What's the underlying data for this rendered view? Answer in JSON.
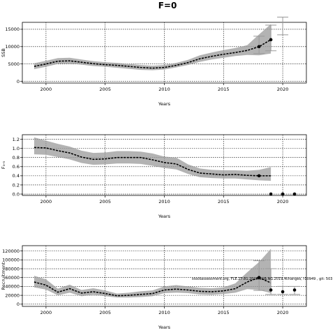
{
  "figure": {
    "title": "F=0",
    "note": "stockassessment.org, FLE.27.81.2018.SGB.NG.2019.4changes, r10949 , git: 503"
  },
  "chart_data": [
    {
      "type": "line",
      "name": "ssb-panel",
      "xlabel": "Years",
      "ylabel": "SSB",
      "xlim": [
        1998,
        2022
      ],
      "ylim": [
        -500,
        17000
      ],
      "xticks": [
        "2000",
        "2005",
        "2010",
        "2015",
        "2020"
      ],
      "yticks": [
        "0",
        "5000",
        "10000",
        "15000"
      ],
      "grid": true,
      "x": [
        1999,
        2000,
        2001,
        2002,
        2003,
        2004,
        2005,
        2006,
        2007,
        2008,
        2009,
        2010,
        2011,
        2012,
        2013,
        2014,
        2015,
        2016,
        2017,
        2018,
        2019
      ],
      "estimate": [
        4300,
        5000,
        5800,
        5900,
        5500,
        5100,
        4800,
        4600,
        4300,
        4000,
        3800,
        4000,
        4600,
        5400,
        6500,
        7200,
        7800,
        8300,
        8900,
        10000,
        12000
      ],
      "lower": [
        3500,
        4200,
        5000,
        5100,
        4800,
        4400,
        4200,
        3900,
        3600,
        3300,
        3200,
        3400,
        4000,
        4700,
        5600,
        6300,
        6800,
        7300,
        7600,
        7500,
        8000
      ],
      "upper": [
        5200,
        5900,
        6700,
        6800,
        6300,
        5800,
        5500,
        5300,
        5000,
        4700,
        4500,
        4700,
        5300,
        6200,
        7500,
        8300,
        9000,
        9600,
        10400,
        13500,
        16500
      ],
      "forecast": {
        "x": [
          2018,
          2019,
          2020
        ],
        "median": [
          10000,
          12000,
          15500
        ],
        "low": [
          8000,
          8800,
          13400
        ],
        "high": [
          13000,
          16200,
          18500
        ],
        "dots": [
          1,
          1,
          0
        ]
      }
    },
    {
      "type": "line",
      "name": "fbar-panel",
      "xlabel": "Years",
      "ylabel": "F₃-₅",
      "xlim": [
        1998,
        2022
      ],
      "ylim": [
        -0.03,
        1.3
      ],
      "xticks": [
        "2000",
        "2005",
        "2010",
        "2015",
        "2020"
      ],
      "yticks": [
        "0.0",
        "0.2",
        "0.4",
        "0.6",
        "0.8",
        "1.0",
        "1.2"
      ],
      "grid": true,
      "x": [
        1999,
        2000,
        2001,
        2002,
        2003,
        2004,
        2005,
        2006,
        2007,
        2008,
        2009,
        2010,
        2011,
        2012,
        2013,
        2014,
        2015,
        2016,
        2017,
        2018,
        2019
      ],
      "estimate": [
        1.02,
        1.01,
        0.95,
        0.9,
        0.81,
        0.76,
        0.77,
        0.8,
        0.8,
        0.8,
        0.75,
        0.69,
        0.66,
        0.54,
        0.46,
        0.44,
        0.42,
        0.43,
        0.41,
        0.4,
        0.4
      ],
      "lower": [
        0.87,
        0.86,
        0.81,
        0.76,
        0.68,
        0.64,
        0.65,
        0.67,
        0.67,
        0.66,
        0.62,
        0.57,
        0.54,
        0.44,
        0.37,
        0.35,
        0.34,
        0.34,
        0.32,
        0.3,
        0.29
      ],
      "upper": [
        1.24,
        1.17,
        1.1,
        1.04,
        0.95,
        0.9,
        0.91,
        0.94,
        0.94,
        0.93,
        0.89,
        0.82,
        0.8,
        0.65,
        0.56,
        0.53,
        0.52,
        0.52,
        0.51,
        0.53,
        0.59
      ],
      "forecast": {
        "x": [
          2018,
          2019,
          2020,
          2021
        ],
        "median": [
          0.4,
          0.0,
          0.0,
          0.0
        ],
        "low": [
          0.4,
          0.0,
          0.0,
          0.0
        ],
        "high": [
          0.4,
          0.0,
          0.0,
          0.0
        ],
        "dots": [
          1,
          1,
          1,
          1
        ]
      }
    },
    {
      "type": "line",
      "name": "recruitment-panel",
      "xlabel": "Years",
      "ylabel": "Recruitment",
      "xlim": [
        1998,
        2022
      ],
      "ylim": [
        -5000,
        132000
      ],
      "xticks": [
        "2000",
        "2005",
        "2010",
        "2015",
        "2020"
      ],
      "yticks": [
        "0",
        "20000",
        "40000",
        "60000",
        "80000",
        "100000",
        "120000"
      ],
      "grid": true,
      "x": [
        1999,
        2000,
        2001,
        2002,
        2003,
        2004,
        2005,
        2006,
        2007,
        2008,
        2009,
        2010,
        2011,
        2012,
        2013,
        2014,
        2015,
        2016,
        2017,
        2018,
        2019
      ],
      "estimate": [
        50000,
        43000,
        27000,
        35000,
        25000,
        28000,
        24000,
        19000,
        20000,
        22000,
        24000,
        32000,
        34000,
        32000,
        29000,
        28000,
        30000,
        35000,
        50000,
        60000,
        48000
      ],
      "lower": [
        38000,
        33000,
        20000,
        26000,
        18000,
        21000,
        18000,
        15000,
        15000,
        16000,
        18000,
        25000,
        26000,
        25000,
        22000,
        21000,
        23000,
        26000,
        34000,
        32000,
        25000
      ],
      "upper": [
        64000,
        56000,
        35000,
        44000,
        32000,
        36000,
        31000,
        24000,
        26000,
        29000,
        31000,
        40000,
        43000,
        40000,
        37000,
        36000,
        38000,
        47000,
        72000,
        95000,
        125000
      ],
      "forecast": {
        "x": [
          2018,
          2019,
          2020,
          2021
        ],
        "median": [
          60000,
          32000,
          28000,
          32000
        ],
        "low": [
          31000,
          22000,
          22000,
          22000
        ],
        "high": [
          98000,
          80000,
          40000,
          40000
        ],
        "dots": [
          1,
          1,
          1,
          1
        ]
      }
    }
  ]
}
